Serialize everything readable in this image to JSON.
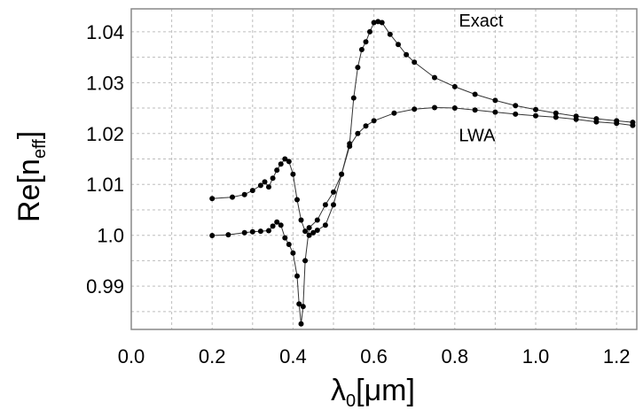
{
  "chart_data": {
    "type": "scatter",
    "title": "",
    "xlabel": "λ0[μm]",
    "xlabel_main": "λ",
    "xlabel_sub": "0",
    "xlabel_unit": "[μm]",
    "ylabel": "Re[neff]",
    "ylabel_main": "Re[n",
    "ylabel_sub": "eff",
    "ylabel_close": "]",
    "xlim": [
      0.0,
      1.25
    ],
    "ylim": [
      0.9815,
      1.0445
    ],
    "xticks": [
      "0.0",
      "0.2",
      "0.4",
      "0.6",
      "0.8",
      "1.0",
      "1.2"
    ],
    "yticks": [
      "0.99",
      "1.0",
      "1.01",
      "1.02",
      "1.03",
      "1.04"
    ],
    "grid": true,
    "series": [
      {
        "name": "Exact",
        "points": [
          [
            0.2,
            0.99995
          ],
          [
            0.24,
            1.0001
          ],
          [
            0.28,
            1.0005
          ],
          [
            0.3,
            1.0007
          ],
          [
            0.32,
            1.0008
          ],
          [
            0.34,
            1.0009
          ],
          [
            0.35,
            1.0018
          ],
          [
            0.36,
            1.0026
          ],
          [
            0.37,
            1.002
          ],
          [
            0.38,
            0.9995
          ],
          [
            0.39,
            0.9982
          ],
          [
            0.4,
            0.9965
          ],
          [
            0.41,
            0.992
          ],
          [
            0.415,
            0.9865
          ],
          [
            0.42,
            0.9826
          ],
          [
            0.425,
            0.986
          ],
          [
            0.43,
            0.995
          ],
          [
            0.44,
            1.0015
          ],
          [
            0.46,
            1.003
          ],
          [
            0.48,
            1.006
          ],
          [
            0.5,
            1.0085
          ],
          [
            0.52,
            1.012
          ],
          [
            0.54,
            1.018
          ],
          [
            0.55,
            1.027
          ],
          [
            0.56,
            1.033
          ],
          [
            0.57,
            1.0365
          ],
          [
            0.58,
            1.038
          ],
          [
            0.59,
            1.04
          ],
          [
            0.6,
            1.0418
          ],
          [
            0.61,
            1.042
          ],
          [
            0.62,
            1.0418
          ],
          [
            0.64,
            1.0395
          ],
          [
            0.66,
            1.0375
          ],
          [
            0.68,
            1.0355
          ],
          [
            0.7,
            1.034
          ],
          [
            0.75,
            1.031
          ],
          [
            0.8,
            1.0292
          ],
          [
            0.85,
            1.0277
          ],
          [
            0.9,
            1.0265
          ],
          [
            0.95,
            1.0255
          ],
          [
            1.0,
            1.0247
          ],
          [
            1.05,
            1.024
          ],
          [
            1.1,
            1.0234
          ],
          [
            1.15,
            1.0229
          ],
          [
            1.2,
            1.0225
          ],
          [
            1.24,
            1.0222
          ]
        ]
      },
      {
        "name": "LWA",
        "points": [
          [
            0.2,
            1.0072
          ],
          [
            0.25,
            1.0075
          ],
          [
            0.28,
            1.008
          ],
          [
            0.3,
            1.0088
          ],
          [
            0.32,
            1.0098
          ],
          [
            0.33,
            1.0105
          ],
          [
            0.34,
            1.0095
          ],
          [
            0.35,
            1.0112
          ],
          [
            0.36,
            1.0128
          ],
          [
            0.37,
            1.014
          ],
          [
            0.38,
            1.015
          ],
          [
            0.39,
            1.0145
          ],
          [
            0.4,
            1.012
          ],
          [
            0.41,
            1.007
          ],
          [
            0.42,
            1.003
          ],
          [
            0.43,
            1.0008
          ],
          [
            0.44,
            1.0
          ],
          [
            0.45,
            1.0005
          ],
          [
            0.46,
            1.001
          ],
          [
            0.48,
            1.002
          ],
          [
            0.5,
            1.006
          ],
          [
            0.52,
            1.012
          ],
          [
            0.54,
            1.0175
          ],
          [
            0.56,
            1.02
          ],
          [
            0.58,
            1.0215
          ],
          [
            0.6,
            1.0225
          ],
          [
            0.65,
            1.024
          ],
          [
            0.7,
            1.0248
          ],
          [
            0.75,
            1.0251
          ],
          [
            0.8,
            1.025
          ],
          [
            0.85,
            1.0246
          ],
          [
            0.9,
            1.0242
          ],
          [
            0.95,
            1.0238
          ],
          [
            1.0,
            1.0235
          ],
          [
            1.05,
            1.0232
          ],
          [
            1.1,
            1.0228
          ],
          [
            1.15,
            1.0223
          ],
          [
            1.2,
            1.022
          ],
          [
            1.24,
            1.0216
          ]
        ]
      }
    ],
    "legend_labels": {
      "exact": "Exact",
      "lwa": "LWA"
    }
  }
}
